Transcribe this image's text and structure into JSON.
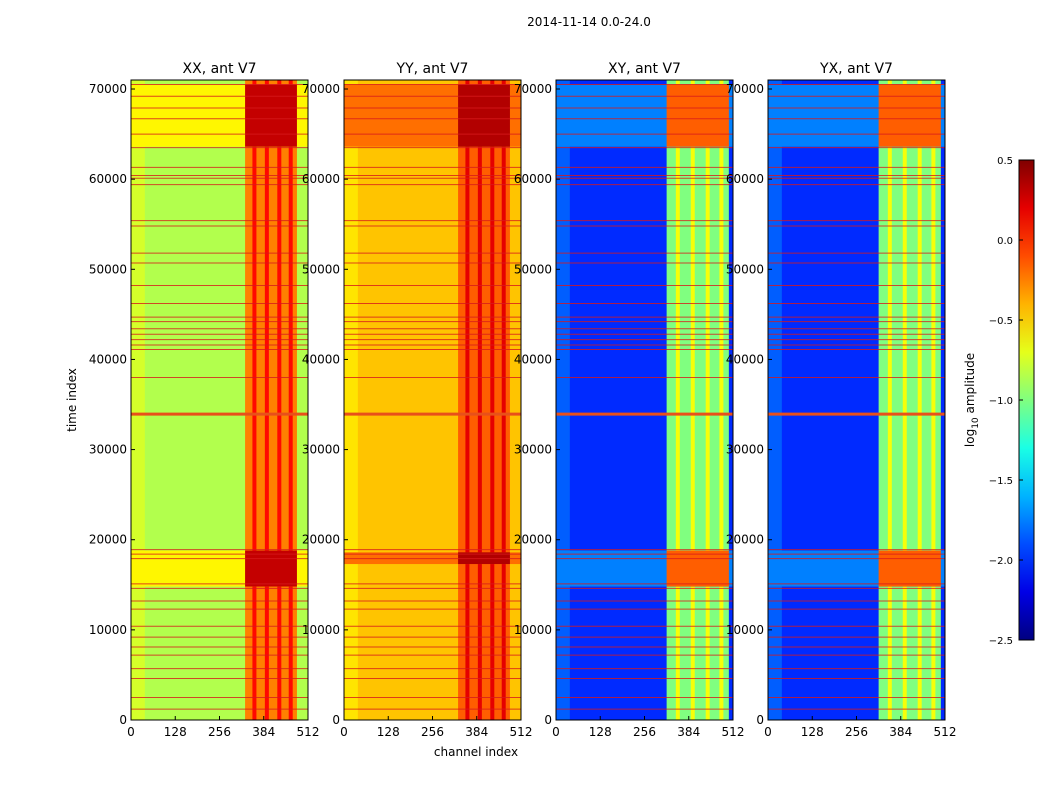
{
  "chart_data": {
    "type": "heatmap",
    "suptitle": "2014-11-14 0.0-24.0",
    "panels": [
      {
        "title": "XX, ant V7",
        "key": "XX"
      },
      {
        "title": "YY, ant V7",
        "key": "YY"
      },
      {
        "title": "XY, ant V7",
        "key": "XY"
      },
      {
        "title": "YX, ant V7",
        "key": "YX"
      }
    ],
    "xlabel": "channel index",
    "ylabel": "time index",
    "xlim": [
      0,
      512
    ],
    "ylim": [
      0,
      71000
    ],
    "xticks": [
      0,
      128,
      256,
      384,
      512
    ],
    "xtick_labels": [
      "0",
      "128",
      "256",
      "384",
      "512"
    ],
    "yticks": [
      0,
      10000,
      20000,
      30000,
      40000,
      50000,
      60000,
      70000
    ],
    "ytick_labels": [
      "0",
      "10000",
      "20000",
      "30000",
      "40000",
      "50000",
      "60000",
      "70000"
    ],
    "colorbar": {
      "label": "log10 amplitude",
      "label_base": "log",
      "label_sub": "10",
      "label_rest": " amplitude",
      "colormap": "jet",
      "range": [
        -2.5,
        0.5
      ],
      "ticks": [
        0.5,
        0.0,
        -0.5,
        -1.0,
        -1.5,
        -2.0,
        -2.5
      ],
      "tick_labels": [
        "0.5",
        "0.0",
        "−0.5",
        "−1.0",
        "−1.5",
        "−2.0",
        "−2.5"
      ]
    },
    "flagged_time_indices": [
      1200,
      2500,
      4600,
      5700,
      7200,
      8100,
      9200,
      10400,
      12300,
      13200,
      14600,
      15100,
      17900,
      18400,
      18900,
      33900,
      38000,
      41100,
      41600,
      42200,
      42800,
      43400,
      44200,
      44700,
      46200,
      48200,
      50700,
      51800,
      54800,
      55400,
      59400,
      60100,
      60400,
      61300,
      63500,
      65000,
      66700,
      67900,
      69200,
      70500
    ],
    "panel_values": {
      "XX": {
        "background": -0.85,
        "left_band": -0.75,
        "rfi_band_channels": [
          330,
          480
        ],
        "rfi_band": -0.25,
        "strong_time_blocks": [
          [
            63600,
            70500
          ],
          [
            14800,
            18800
          ]
        ],
        "strong_value": 0.3
      },
      "YY": {
        "background": -0.45,
        "left_band": -0.55,
        "rfi_band_channels": [
          330,
          480
        ],
        "rfi_band": -0.15,
        "strong_time_blocks": [
          [
            63600,
            70500
          ],
          [
            17300,
            18600
          ]
        ],
        "strong_value": 0.35
      },
      "XY": {
        "background": -2.0,
        "left_band": -1.85,
        "rfi_band_channels": [
          320,
          500
        ],
        "rfi_band": -1.0,
        "strong_time_blocks": [
          [
            63600,
            70500
          ],
          [
            14800,
            18800
          ]
        ],
        "strong_value": -0.15
      },
      "YX": {
        "background": -2.0,
        "left_band": -1.85,
        "rfi_band_channels": [
          320,
          500
        ],
        "rfi_band": -1.0,
        "strong_time_blocks": [
          [
            63600,
            70500
          ],
          [
            14800,
            18800
          ]
        ],
        "strong_value": -0.15
      }
    },
    "colors": {
      "flag_line": "#d7191c",
      "axis": "#000000"
    }
  }
}
